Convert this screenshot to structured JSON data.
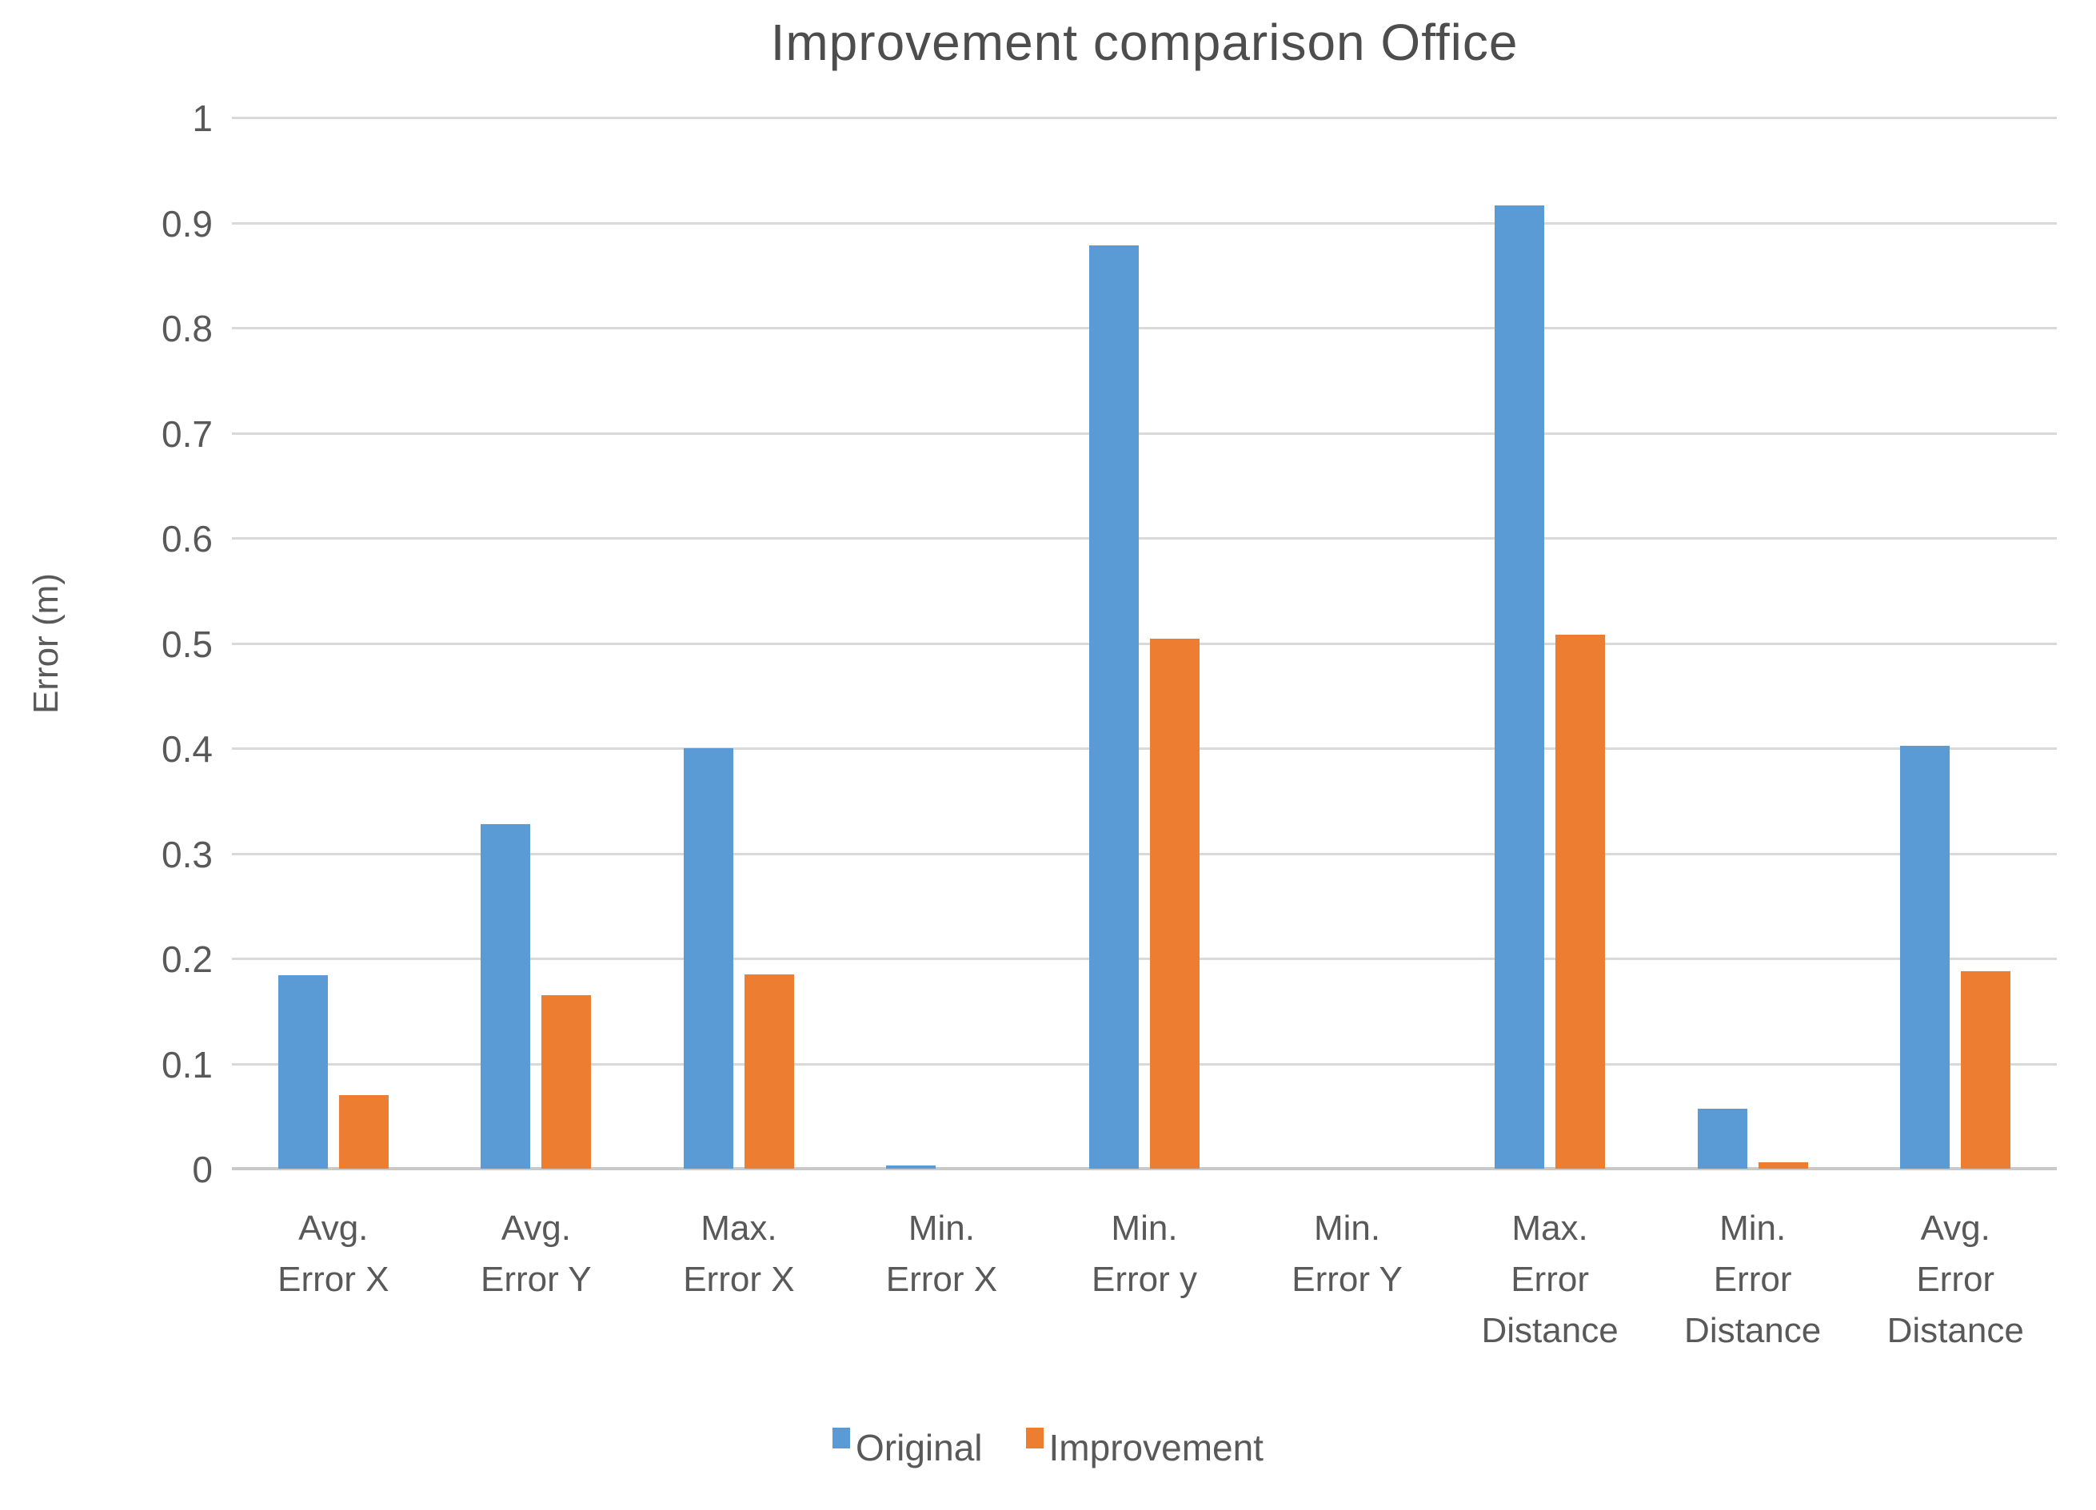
{
  "chart_data": {
    "type": "bar",
    "title": "Improvement comparison Office",
    "xlabel": "",
    "ylabel": "Error (m)",
    "ylim": [
      0,
      1
    ],
    "grid": true,
    "legend_position": "bottom",
    "y_tick_values": [
      1,
      0.9,
      0.8,
      0.7,
      0.6,
      0.5,
      0.4,
      0.3,
      0.2,
      0.1,
      0
    ],
    "y_tick_labels": [
      "1",
      "0.9",
      "0.8",
      "0.7",
      "0.6",
      "0.5",
      "0.4",
      "0.3",
      "0.2",
      "0.1",
      "0"
    ],
    "categories": [
      "Avg. Error X",
      "Avg. Error Y",
      "Max. Error X",
      "Min. Error X",
      "Min. Error y",
      "Min. Error Y",
      "Max. Error Distance",
      "Min. Error Distance",
      "Avg. Error Distance"
    ],
    "category_label_lines": [
      [
        "Avg.",
        "Error X"
      ],
      [
        "Avg.",
        "Error Y"
      ],
      [
        "Max.",
        "Error X"
      ],
      [
        "Min.",
        "Error X"
      ],
      [
        "Min.",
        "Error y"
      ],
      [
        "Min.",
        "Error Y"
      ],
      [
        "Max.",
        "Error",
        "Distance"
      ],
      [
        "Min.",
        "Error",
        "Distance"
      ],
      [
        "Avg.",
        "Error",
        "Distance"
      ]
    ],
    "series": [
      {
        "name": "Original",
        "color": "#5B9BD5",
        "values": [
          0.184,
          0.328,
          0.4,
          0.003,
          0.878,
          0,
          0.916,
          0.057,
          0.402
        ]
      },
      {
        "name": "Improvement",
        "color": "#ED7D31",
        "values": [
          0.07,
          0.165,
          0.185,
          0,
          0.504,
          0,
          0.508,
          0.006,
          0.188
        ]
      }
    ],
    "colors": {
      "text": "#595959",
      "title": "#4D4D4D",
      "gridline": "#D9D9D9",
      "axis_line": "#C9C9C9",
      "background": "#FFFFFF"
    }
  }
}
